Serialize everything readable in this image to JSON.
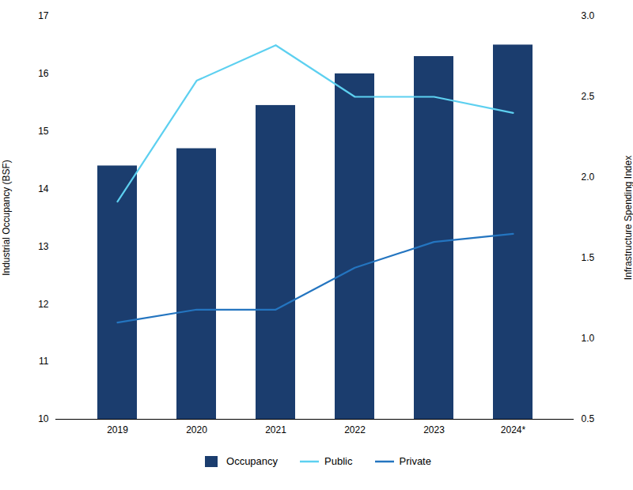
{
  "chart_data": {
    "type": "bar",
    "categories": [
      "2019",
      "2020",
      "2021",
      "2022",
      "2023",
      "2024*"
    ],
    "series": [
      {
        "name": "Occupancy",
        "type": "bar",
        "color": "#1b3d6e",
        "values": [
          14.4,
          14.7,
          15.45,
          16.0,
          16.3,
          16.5
        ]
      },
      {
        "name": "Public",
        "type": "line",
        "axis": "y2",
        "color": "#5dd0f0",
        "values": [
          1.85,
          2.6,
          2.82,
          2.5,
          2.5,
          2.4
        ]
      },
      {
        "name": "Private",
        "type": "line",
        "axis": "y2",
        "color": "#2475c0",
        "values": [
          1.1,
          1.18,
          1.18,
          1.44,
          1.6,
          1.65
        ]
      }
    ],
    "ylabel": "Industrial Occupancy (BSF)",
    "y2label": "Infrastructure Spending Index",
    "ylim": [
      10,
      17
    ],
    "yticks": [
      10,
      11,
      12,
      13,
      14,
      15,
      16,
      17
    ],
    "y2lim": [
      0.5,
      3.0
    ],
    "y2ticks": [
      0.5,
      {
        "value": 1.0,
        "label": "1.0"
      },
      1.5,
      {
        "value": 2.0,
        "label": "2.0"
      },
      2.5,
      {
        "value": 3.0,
        "label": "3.0"
      }
    ],
    "grid": false,
    "legend": "bottom"
  }
}
